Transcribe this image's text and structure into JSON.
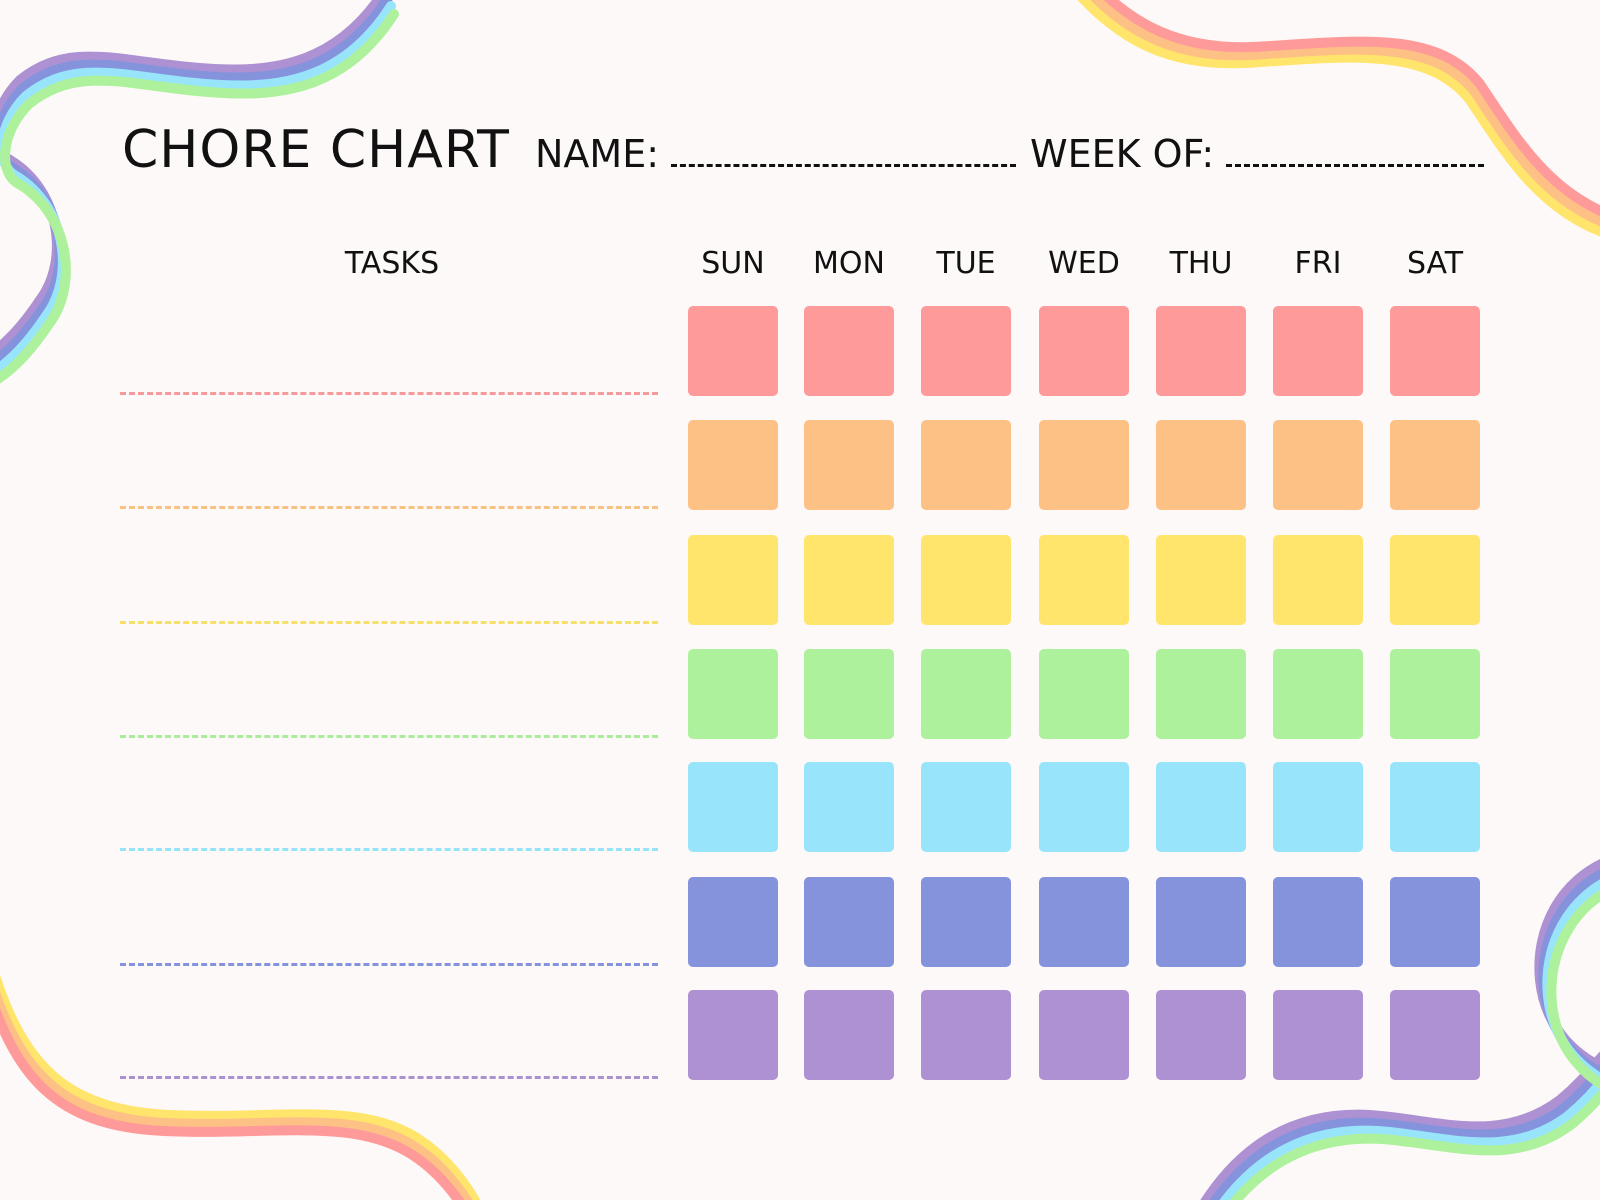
{
  "header": {
    "title": "CHORE CHART",
    "name_label": "NAME:",
    "week_label": "WEEK OF:"
  },
  "tasks_header": "TASKS",
  "days": [
    "SUN",
    "MON",
    "TUE",
    "WED",
    "THU",
    "FRI",
    "SAT"
  ],
  "row_colors": [
    "#fe9a9a",
    "#fdc185",
    "#ffe56c",
    "#adf19c",
    "#98e5fb",
    "#8593dd",
    "#ad91d2"
  ],
  "line_colors": [
    "#f59a9a",
    "#f7c183",
    "#f6e06a",
    "#a9ec9a",
    "#96e3f7",
    "#8593dd",
    "#ab91d2"
  ],
  "ribbon_colors": {
    "cool": [
      "#ad91d2",
      "#8593dd",
      "#98e5fb",
      "#adf19c"
    ],
    "warm": [
      "#ffe56c",
      "#fdc185",
      "#fe9a9a"
    ]
  }
}
